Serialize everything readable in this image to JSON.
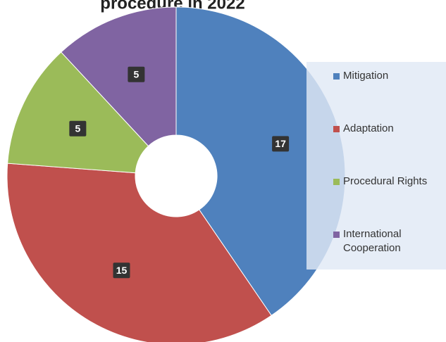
{
  "chart_data": {
    "type": "donut",
    "title": "procedure in 2022",
    "categories": [
      "Mitigation",
      "Adaptation",
      "Procedural Rights",
      "International Cooperation"
    ],
    "values": [
      17,
      15,
      5,
      5
    ],
    "colors": [
      "#4f81bd",
      "#c0504d",
      "#9bbb59",
      "#8064a2"
    ],
    "legend": "right"
  }
}
